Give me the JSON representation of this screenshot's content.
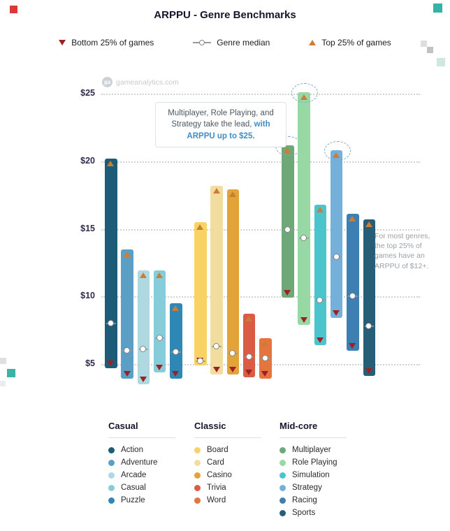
{
  "title": "ARPPU - Genre Benchmarks",
  "watermark": {
    "logo_text": "ga",
    "text": "gameanalytics.com"
  },
  "legend": {
    "bottom": "Bottom 25% of games",
    "median": "Genre median",
    "top": "Top 25% of games"
  },
  "annotations": {
    "callout_dark": "Multiplayer, Role Playing, and Strategy take the lead, ",
    "callout_blue": "with ARPPU up to $25.",
    "side_note": "For most genres, the top 25% of games have an ARPPU of $12+."
  },
  "colors": {
    "bottom_marker": "#9e2023",
    "top_marker": "#cd7d33",
    "median_marker": "#9b9b9b",
    "highlight_ring": "#7aa7d4",
    "callout_blue": "#3f8dc6"
  },
  "chart_data": {
    "type": "bar",
    "subtype": "quartile-range-bars",
    "title": "ARPPU - Genre Benchmarks",
    "xlabel": "",
    "ylabel": "",
    "y_ticks": [
      "$25",
      "$20",
      "$15",
      "$10",
      "$5"
    ],
    "y_tick_values": [
      25,
      20,
      15,
      10,
      5
    ],
    "ylim": [
      3,
      26
    ],
    "grid": "horizontal-dotted",
    "legend_position": "bottom",
    "groups": [
      {
        "name": "Casual",
        "genres": [
          {
            "label": "Action",
            "color": "#1d5c77",
            "bottom25": 4.7,
            "median": 8.0,
            "top25": 20.2
          },
          {
            "label": "Adventure",
            "color": "#5b9fc6",
            "bottom25": 3.9,
            "median": 6.0,
            "top25": 13.5
          },
          {
            "label": "Arcade",
            "color": "#aed9e0",
            "bottom25": 3.5,
            "median": 6.1,
            "top25": 11.9
          },
          {
            "label": "Casual",
            "color": "#87cdd9",
            "bottom25": 4.4,
            "median": 6.9,
            "top25": 11.9
          },
          {
            "label": "Puzzle",
            "color": "#2e87b5",
            "bottom25": 3.9,
            "median": 5.9,
            "top25": 9.5
          }
        ]
      },
      {
        "name": "Classic",
        "genres": [
          {
            "label": "Board",
            "color": "#f8d263",
            "bottom25": 4.9,
            "median": 5.2,
            "top25": 15.5
          },
          {
            "label": "Card",
            "color": "#f2dc9f",
            "bottom25": 4.2,
            "median": 6.3,
            "top25": 18.2
          },
          {
            "label": "Casino",
            "color": "#e2a338",
            "bottom25": 4.2,
            "median": 5.8,
            "top25": 17.9
          },
          {
            "label": "Trivia",
            "color": "#db5c45",
            "bottom25": 4.0,
            "median": 5.5,
            "top25": 8.7
          },
          {
            "label": "Word",
            "color": "#e5753f",
            "bottom25": 3.9,
            "median": 5.4,
            "top25": 6.9
          }
        ]
      },
      {
        "name": "Mid-core",
        "genres": [
          {
            "label": "Multiplayer",
            "color": "#6fa878",
            "bottom25": 9.9,
            "median": 14.9,
            "top25": 21.2,
            "highlight": true
          },
          {
            "label": "Role Playing",
            "color": "#97d8a4",
            "bottom25": 7.9,
            "median": 14.3,
            "top25": 25.1,
            "highlight": true
          },
          {
            "label": "Simulation",
            "color": "#4cc4cb",
            "bottom25": 6.4,
            "median": 9.7,
            "top25": 16.8
          },
          {
            "label": "Strategy",
            "color": "#74b0da",
            "bottom25": 8.4,
            "median": 12.9,
            "top25": 20.8,
            "highlight": true
          },
          {
            "label": "Racing",
            "color": "#3d7fb2",
            "bottom25": 6.0,
            "median": 10.0,
            "top25": 16.1
          },
          {
            "label": "Sports",
            "color": "#265d77",
            "bottom25": 4.1,
            "median": 7.8,
            "top25": 15.7
          }
        ]
      }
    ]
  }
}
